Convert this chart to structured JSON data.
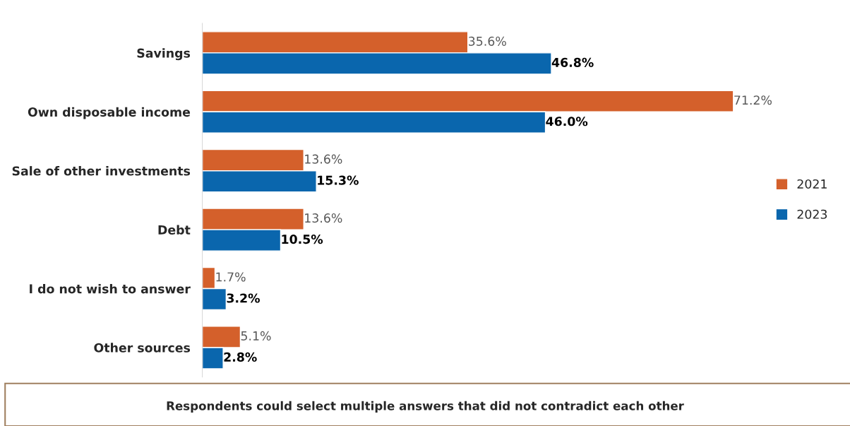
{
  "chart_data": {
    "type": "bar",
    "orientation": "horizontal",
    "categories": [
      "Savings",
      "Own disposable income",
      "Sale of other investments",
      "Debt",
      "I do not wish to answer",
      "Other sources"
    ],
    "series": [
      {
        "name": "2021",
        "color": "#d4602b",
        "values": [
          35.6,
          71.2,
          13.6,
          13.6,
          1.7,
          5.1
        ],
        "value_labels": [
          "35.6%",
          "71.2%",
          "13.6%",
          "13.6%",
          "1.7%",
          "5.1%"
        ]
      },
      {
        "name": "2023",
        "color": "#0a66ad",
        "values": [
          46.8,
          46.0,
          15.3,
          10.5,
          3.2,
          2.8
        ],
        "value_labels": [
          "46.8%",
          "46.0%",
          "15.3%",
          "10.5%",
          "3.2%",
          "2.8%"
        ]
      }
    ],
    "legend": "right",
    "grid": false,
    "annotations": [
      "Respondents could select multiple answers that did not contradict each other"
    ]
  }
}
